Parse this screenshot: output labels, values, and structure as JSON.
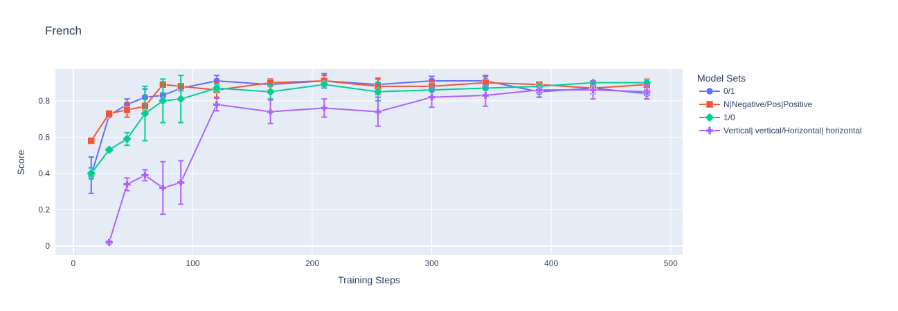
{
  "chart_data": {
    "type": "line",
    "title": "French",
    "xlabel": "Training Steps",
    "ylabel": "Score",
    "xlim": [
      -15,
      510
    ],
    "ylim": [
      -0.05,
      0.975
    ],
    "x_ticks": [
      0,
      100,
      200,
      300,
      400,
      500
    ],
    "x_tick_labels": [
      "0",
      "100",
      "200",
      "300",
      "400",
      "500"
    ],
    "y_ticks": [
      0,
      0.2,
      0.4,
      0.6,
      0.8
    ],
    "y_tick_labels": [
      "0",
      "0.2",
      "0.4",
      "0.6",
      "0.8"
    ],
    "grid": true,
    "background": "#e5ecf6",
    "legend": {
      "title": "Model Sets",
      "placement": "right"
    },
    "series": [
      {
        "name": "0/1",
        "color": "#636efa",
        "marker": "circle",
        "x": [
          15,
          30,
          45,
          60,
          75,
          90,
          120,
          165,
          210,
          255,
          300,
          345,
          390,
          435,
          480
        ],
        "y": [
          0.39,
          0.72,
          0.78,
          0.82,
          0.83,
          0.87,
          0.91,
          0.89,
          0.91,
          0.89,
          0.91,
          0.91,
          0.85,
          0.87,
          0.84
        ],
        "err": [
          0.1,
          0.01,
          0.03,
          0.045,
          0.015,
          0.015,
          0.03,
          0.03,
          0.04,
          0.03,
          0.025,
          0.025,
          0.03,
          0.03,
          0.03
        ]
      },
      {
        "name": "N|Negative/Pos|Positive",
        "color": "#ef553b",
        "marker": "square",
        "x": [
          15,
          30,
          45,
          60,
          75,
          90,
          120,
          165,
          210,
          255,
          300,
          345,
          390,
          435,
          480
        ],
        "y": [
          0.58,
          0.73,
          0.75,
          0.77,
          0.89,
          0.88,
          0.86,
          0.9,
          0.91,
          0.88,
          0.88,
          0.9,
          0.89,
          0.87,
          0.89
        ],
        "err": [
          0.01,
          0.015,
          0.04,
          0.02,
          0.015,
          0.015,
          0.04,
          0.02,
          0.03,
          0.045,
          0.03,
          0.04,
          0.01,
          0.01,
          0.03
        ]
      },
      {
        "name": "1/0",
        "color": "#00cc96",
        "marker": "diamond",
        "x": [
          15,
          30,
          45,
          60,
          75,
          90,
          120,
          165,
          210,
          255,
          300,
          345,
          390,
          435,
          480
        ],
        "y": [
          0.4,
          0.53,
          0.59,
          0.73,
          0.8,
          0.81,
          0.87,
          0.85,
          0.89,
          0.85,
          0.86,
          0.87,
          0.88,
          0.9,
          0.9
        ],
        "err": [
          0.03,
          0.01,
          0.035,
          0.15,
          0.12,
          0.13,
          0.02,
          0.04,
          0.01,
          0.05,
          0.01,
          0.01,
          0.01,
          0.01,
          0.01
        ]
      },
      {
        "name": "Vertical| vertical/Horizontal| horizontal",
        "color": "#ab63fa",
        "marker": "cross",
        "x": [
          30,
          45,
          60,
          75,
          90,
          120,
          165,
          210,
          255,
          300,
          345,
          390,
          435,
          480
        ],
        "y": [
          0.02,
          0.34,
          0.39,
          0.32,
          0.35,
          0.78,
          0.74,
          0.76,
          0.74,
          0.82,
          0.83,
          0.86,
          0.86,
          0.85
        ],
        "err": [
          0.01,
          0.035,
          0.03,
          0.145,
          0.12,
          0.035,
          0.065,
          0.05,
          0.08,
          0.055,
          0.06,
          0.01,
          0.05,
          0.04
        ]
      }
    ]
  }
}
